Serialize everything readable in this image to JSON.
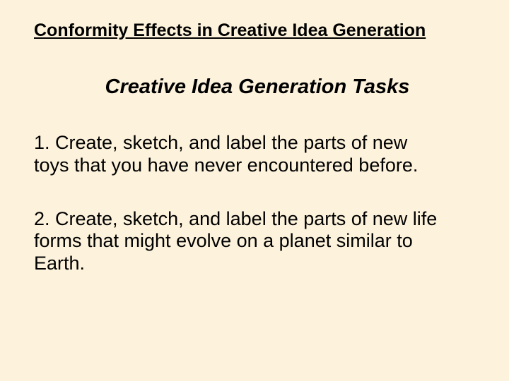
{
  "background_color": "#fdf2db",
  "text_color": "#000000",
  "font_family": "Arial",
  "title": {
    "text": "Conformity Effects in Creative Idea Generation",
    "font_size": 25,
    "bold": true,
    "underline": true
  },
  "subtitle": {
    "text": "Creative Idea Generation Tasks",
    "font_size": 29,
    "italic": true,
    "align": "center"
  },
  "tasks": [
    {
      "text": "1. Create, sketch, and label the parts of new toys that you have never encountered before.",
      "font_size": 27
    },
    {
      "text": "2. Create, sketch, and label the parts of new life forms that might evolve on a planet similar to Earth.",
      "font_size": 27
    }
  ]
}
